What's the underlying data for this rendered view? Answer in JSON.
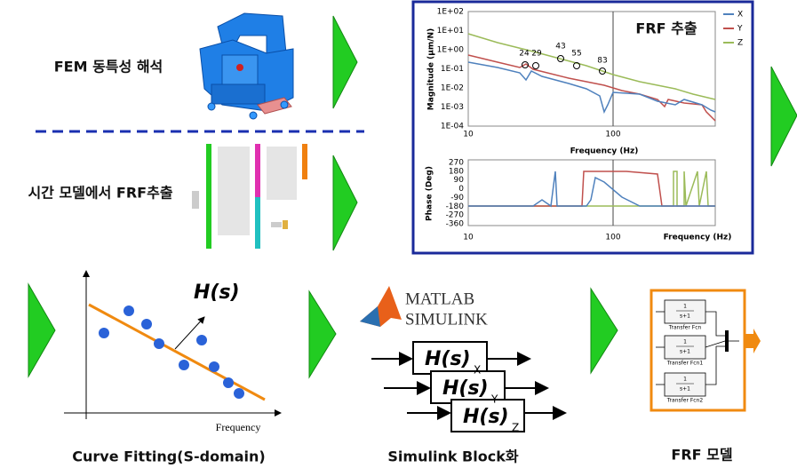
{
  "steps": {
    "fem": "FEM 동특성 해석",
    "time_model": "시간 모델에서 FRF추출",
    "curve_fitting": "Curve Fitting(S-domain)",
    "simulink": "Simulink Block화",
    "frf_model": "FRF 모델"
  },
  "frf_panel": {
    "title": "FRF 추출",
    "legend": [
      "X",
      "Y",
      "Z"
    ],
    "magnitude": {
      "y_label": "Magnitude (μm/N)",
      "y_ticks": [
        "1E+02",
        "1E+01",
        "1E+00",
        "1E-01",
        "1E-02",
        "1E-03",
        "1E-04"
      ],
      "x_ticks": [
        "10",
        "100"
      ],
      "x_label": "Frequency (Hz)",
      "peaks": [
        "24",
        "29",
        "43",
        "55",
        "83"
      ]
    },
    "phase": {
      "y_label": "Phase (Deg)",
      "y_ticks": [
        "270",
        "180",
        "90",
        "0",
        "-90",
        "-180",
        "-270",
        "-360"
      ],
      "x_ticks": [
        "10",
        "100"
      ],
      "x_label": "Frequency (Hz)"
    }
  },
  "curve_fit": {
    "function": "H(s)",
    "x_label": "Frequency"
  },
  "simulink": {
    "logo": [
      "MATLAB",
      "SIMULINK"
    ],
    "blocks": [
      {
        "function": "H(s)",
        "subscript": "X"
      },
      {
        "function": "H(s)",
        "subscript": "Y"
      },
      {
        "function": "H(s)",
        "subscript": "Z"
      }
    ]
  },
  "frf_model": {
    "blocks": [
      {
        "numerator": "1",
        "denominator": "s+1",
        "name": "Transfer Fcn"
      },
      {
        "numerator": "1",
        "denominator": "s+1",
        "name": "Transfer Fcn1"
      },
      {
        "numerator": "1",
        "denominator": "s+1",
        "name": "Transfer Fcn2"
      }
    ]
  }
}
